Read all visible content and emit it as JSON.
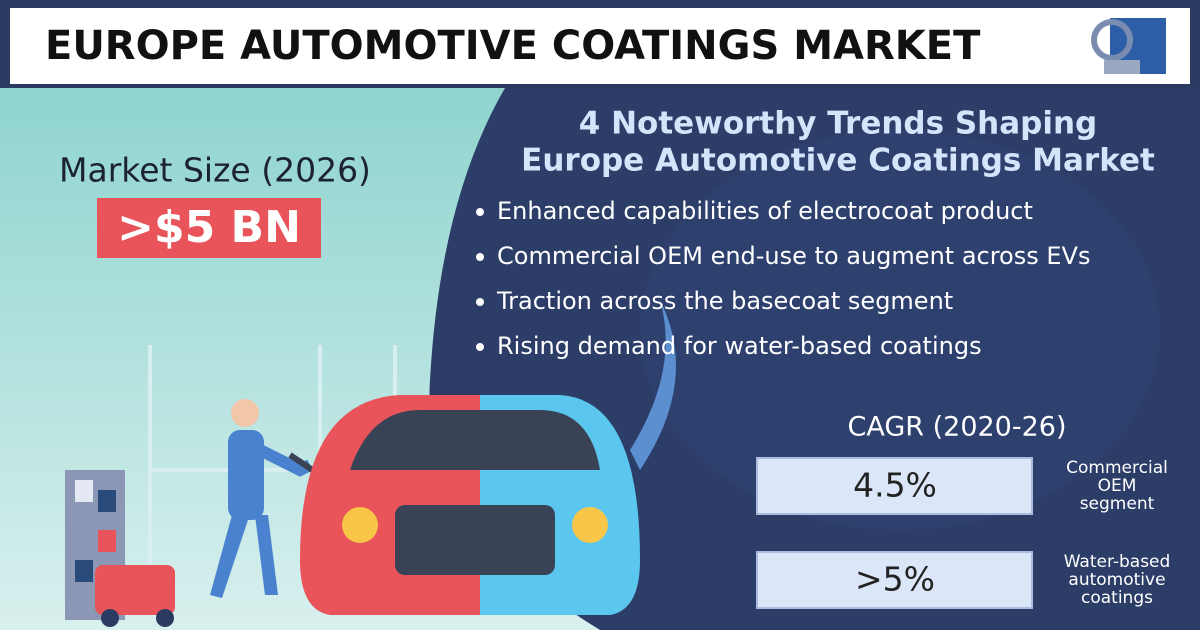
{
  "header": {
    "title": "EUROPE AUTOMOTIVE COATINGS MARKET"
  },
  "market_size": {
    "label": "Market Size (2026)",
    "value": ">$5 BN"
  },
  "trends": {
    "title_lines": [
      "4 Noteworthy Trends Shaping",
      "Europe Automotive Coatings Market"
    ],
    "items": [
      "Enhanced capabilities of electrocoat product",
      "Commercial OEM end-use to augment across EVs",
      "Traction across the basecoat segment",
      "Rising demand for water-based coatings"
    ]
  },
  "cagr": {
    "title": "CAGR (2020-26)",
    "items": [
      {
        "value": "4.5%",
        "label_lines": [
          "Commercial",
          "OEM",
          "segment"
        ]
      },
      {
        "value": ">5%",
        "label_lines": [
          "Water-based",
          "automotive",
          "coatings"
        ]
      }
    ]
  }
}
